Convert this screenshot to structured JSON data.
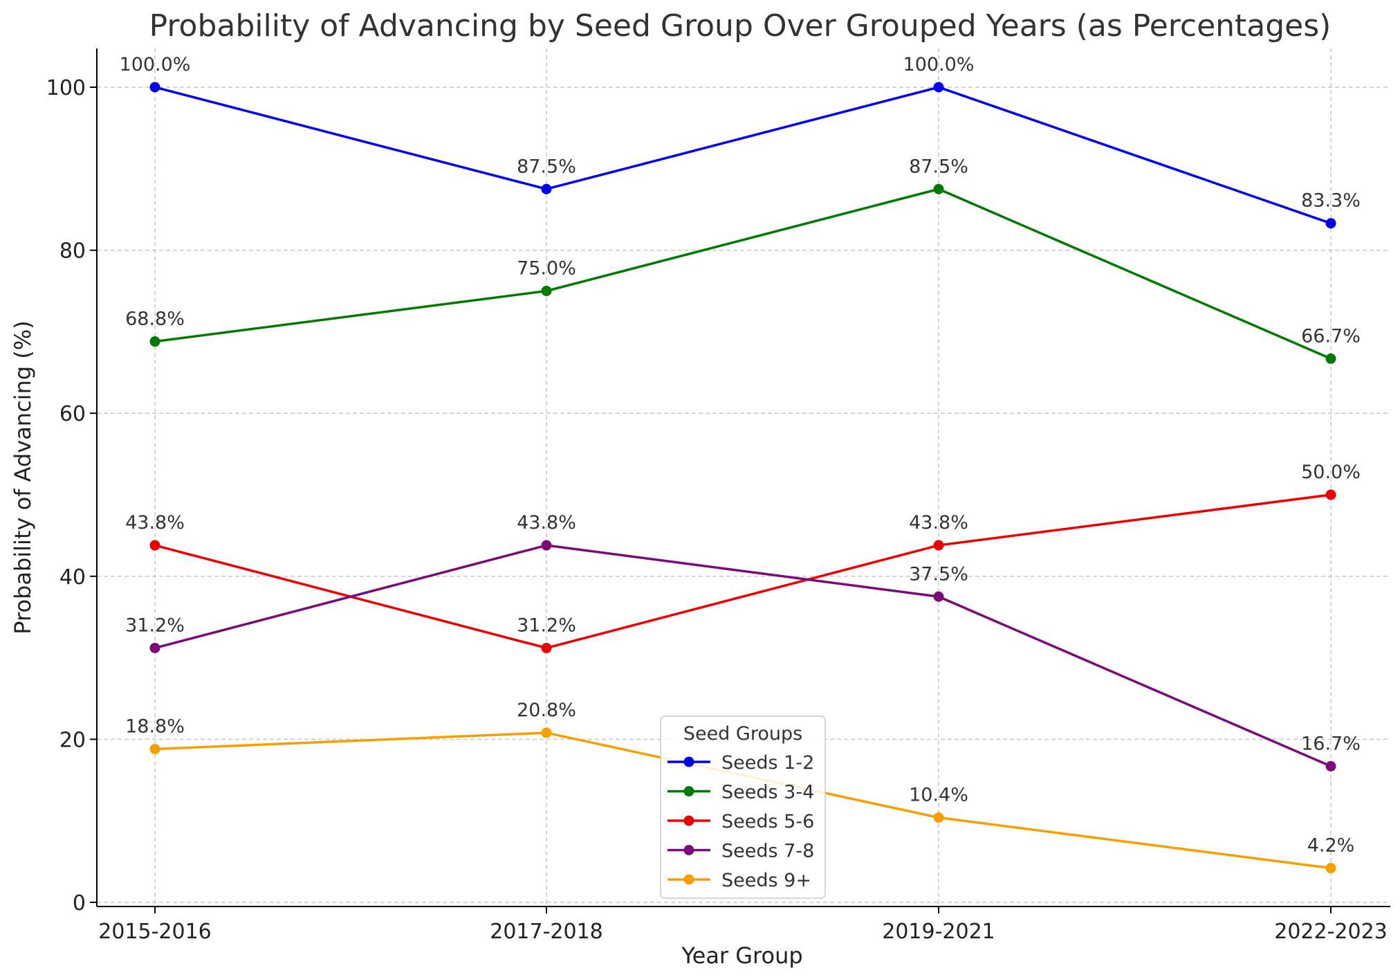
{
  "chart_data": {
    "type": "line",
    "title": "Probability of Advancing by Seed Group Over Grouped Years (as Percentages)",
    "xlabel": "Year Group",
    "ylabel": "Probability of Advancing (%)",
    "categories": [
      "2015-2016",
      "2017-2018",
      "2019-2021",
      "2022-2023"
    ],
    "ylim": [
      0,
      105
    ],
    "yticks": [
      0,
      20,
      40,
      60,
      80,
      100
    ],
    "grid": true,
    "legend": {
      "title": "Seed Groups",
      "position": "bottom-center"
    },
    "series": [
      {
        "name": "Seeds 1-2",
        "color": "#0000ee",
        "values": [
          100.0,
          87.5,
          100.0,
          83.3
        ],
        "labels": [
          "100.0%",
          "87.5%",
          "100.0%",
          "83.3%"
        ]
      },
      {
        "name": "Seeds 3-4",
        "color": "#007a00",
        "values": [
          68.8,
          75.0,
          87.5,
          66.7
        ],
        "labels": [
          "68.8%",
          "75.0%",
          "87.5%",
          "66.7%"
        ]
      },
      {
        "name": "Seeds 5-6",
        "color": "#ee0000",
        "values": [
          43.8,
          31.2,
          43.8,
          50.0
        ],
        "labels": [
          "43.8%",
          "31.2%",
          "43.8%",
          "50.0%"
        ]
      },
      {
        "name": "Seeds 7-8",
        "color": "#7a0a7a",
        "values": [
          31.2,
          43.8,
          37.5,
          16.7
        ],
        "labels": [
          "31.2%",
          "43.8%",
          "37.5%",
          "16.7%"
        ]
      },
      {
        "name": "Seeds 9+",
        "color": "#f5a000",
        "values": [
          18.8,
          20.8,
          10.4,
          4.2
        ],
        "labels": [
          "18.8%",
          "20.8%",
          "10.4%",
          "4.2%"
        ]
      }
    ]
  }
}
